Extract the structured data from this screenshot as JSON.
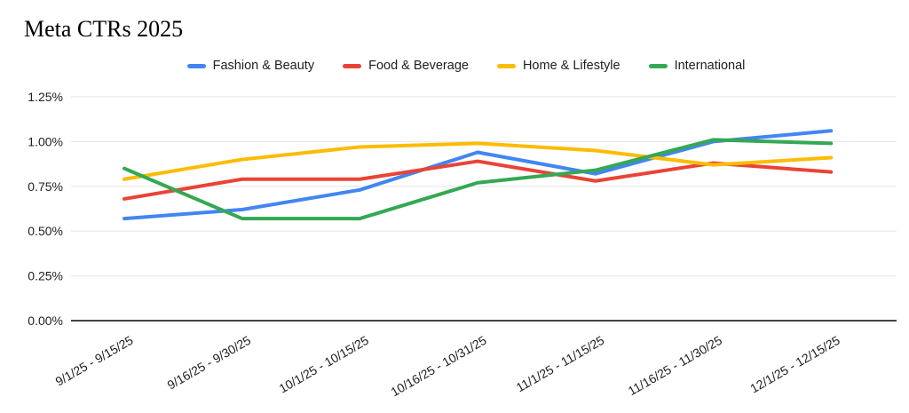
{
  "chart_data": {
    "type": "line",
    "title": "Meta CTRs 2025",
    "categories": [
      "9/1/25 - 9/15/25",
      "9/16/25 - 9/30/25",
      "10/1/25 - 10/15/25",
      "10/16/25 - 10/31/25",
      "11/1/25 - 11/15/25",
      "11/16/25 - 11/30/25",
      "12/1/25 - 12/15/25"
    ],
    "series": [
      {
        "name": "Fashion & Beauty",
        "color": "#4285F4",
        "values": [
          0.57,
          0.62,
          0.73,
          0.94,
          0.82,
          1.0,
          1.06
        ]
      },
      {
        "name": "Food & Beverage",
        "color": "#EA4335",
        "values": [
          0.68,
          0.79,
          0.79,
          0.89,
          0.78,
          0.88,
          0.83
        ]
      },
      {
        "name": "Home & Lifestyle",
        "color": "#FBBC04",
        "values": [
          0.79,
          0.9,
          0.97,
          0.99,
          0.95,
          0.87,
          0.91
        ]
      },
      {
        "name": "International",
        "color": "#34A853",
        "values": [
          0.85,
          0.57,
          0.57,
          0.77,
          0.84,
          1.01,
          0.99
        ]
      }
    ],
    "y_ticks": [
      {
        "label": "0.00%",
        "value": 0
      },
      {
        "label": "0.25%",
        "value": 0.25
      },
      {
        "label": "0.50%",
        "value": 0.5
      },
      {
        "label": "0.75%",
        "value": 0.75
      },
      {
        "label": "1.00%",
        "value": 1
      },
      {
        "label": "1.25%",
        "value": 1.25
      }
    ],
    "ylim": [
      0,
      1.25
    ],
    "unit": "%",
    "grid": true,
    "legend_position": "top",
    "x_label_rotation_deg": -30
  },
  "colors": {
    "background": "#ffffff",
    "grid": "#e6e6e6",
    "axis": "#424242",
    "text": "#1f1f1f",
    "title_text": "#000000"
  }
}
